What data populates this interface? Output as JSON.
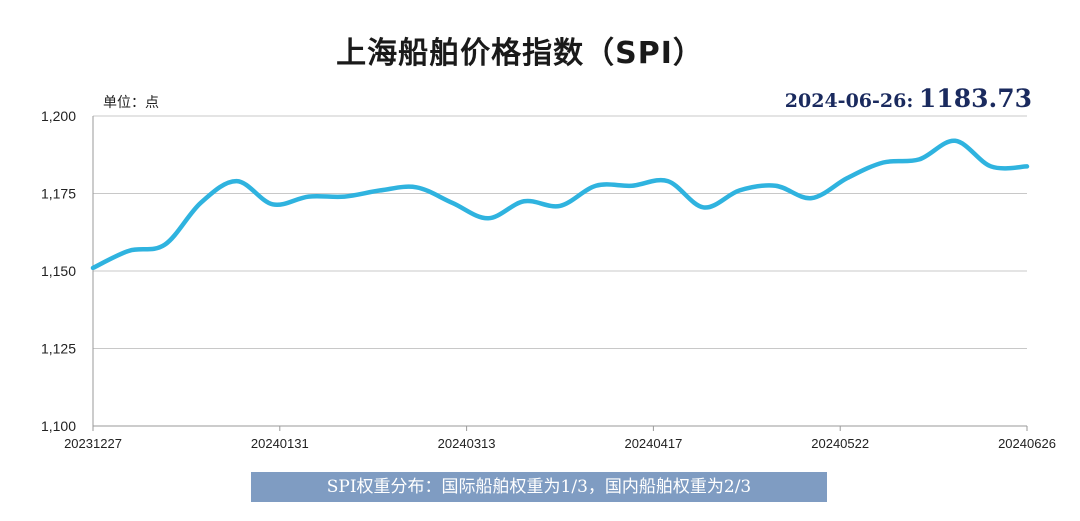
{
  "chart_data": {
    "type": "line",
    "title": "上海船舶价格指数（SPI）",
    "unit_label": "单位：点",
    "latest": {
      "date_label": "2024-06-26:",
      "value_label": "1183.73"
    },
    "xlabel": "",
    "ylabel": "",
    "ylim": [
      1100,
      1200
    ],
    "yticks": [
      1100,
      1125,
      1150,
      1175,
      1200
    ],
    "ytick_labels": [
      "1,100",
      "1,125",
      "1,150",
      "1,175",
      "1,200"
    ],
    "x_tick_labels": [
      "20231227",
      "20240131",
      "20240313",
      "20240417",
      "20240522",
      "20240626"
    ],
    "x_range": [
      0,
      26
    ],
    "grid": true,
    "line_color": "#2fb3df",
    "series": [
      {
        "name": "SPI",
        "x": [
          0,
          1,
          2,
          3,
          4,
          5,
          6,
          7,
          8,
          9,
          10,
          11,
          12,
          13,
          14,
          15,
          16,
          17,
          18,
          19,
          20,
          21,
          22,
          23,
          24,
          25,
          26
        ],
        "values": [
          1151,
          1156.5,
          1158.5,
          1172,
          1179,
          1171.5,
          1174,
          1174,
          1176,
          1177,
          1172,
          1167,
          1172.5,
          1171,
          1177.5,
          1177.5,
          1179,
          1170.5,
          1176,
          1177.5,
          1173.5,
          1180,
          1185,
          1186,
          1192,
          1183.73,
          1183.73
        ]
      }
    ]
  },
  "footnote": "SPI权重分布：国际船舶权重为1/3，国内船舶权重为2/3"
}
